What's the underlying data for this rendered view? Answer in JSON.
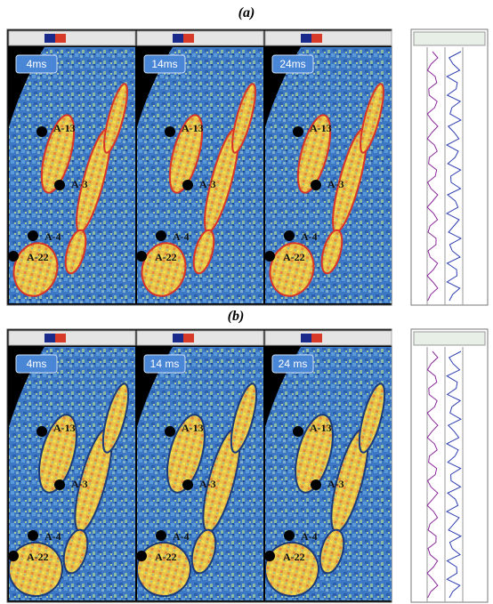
{
  "figures": [
    {
      "label": "(a)",
      "panels": [
        {
          "title": "4ms",
          "wells": [
            "A-13",
            "A-3",
            "A-4",
            "A-22"
          ]
        },
        {
          "title": "14ms",
          "wells": [
            "A-13",
            "A-3",
            "A-4",
            "A-22"
          ]
        },
        {
          "title": "24ms",
          "wells": [
            "A-13",
            "A-3",
            "A-4",
            "A-22"
          ]
        }
      ]
    },
    {
      "label": "(b)",
      "panels": [
        {
          "title": "4ms",
          "wells": [
            "A-13",
            "A-3",
            "A-4",
            "A-22"
          ]
        },
        {
          "title": "14 ms",
          "wells": [
            "A-13",
            "A-3",
            "A-4",
            "A-22"
          ]
        },
        {
          "title": "24 ms",
          "wells": [
            "A-13",
            "A-3",
            "A-4",
            "A-22"
          ]
        }
      ]
    }
  ]
}
